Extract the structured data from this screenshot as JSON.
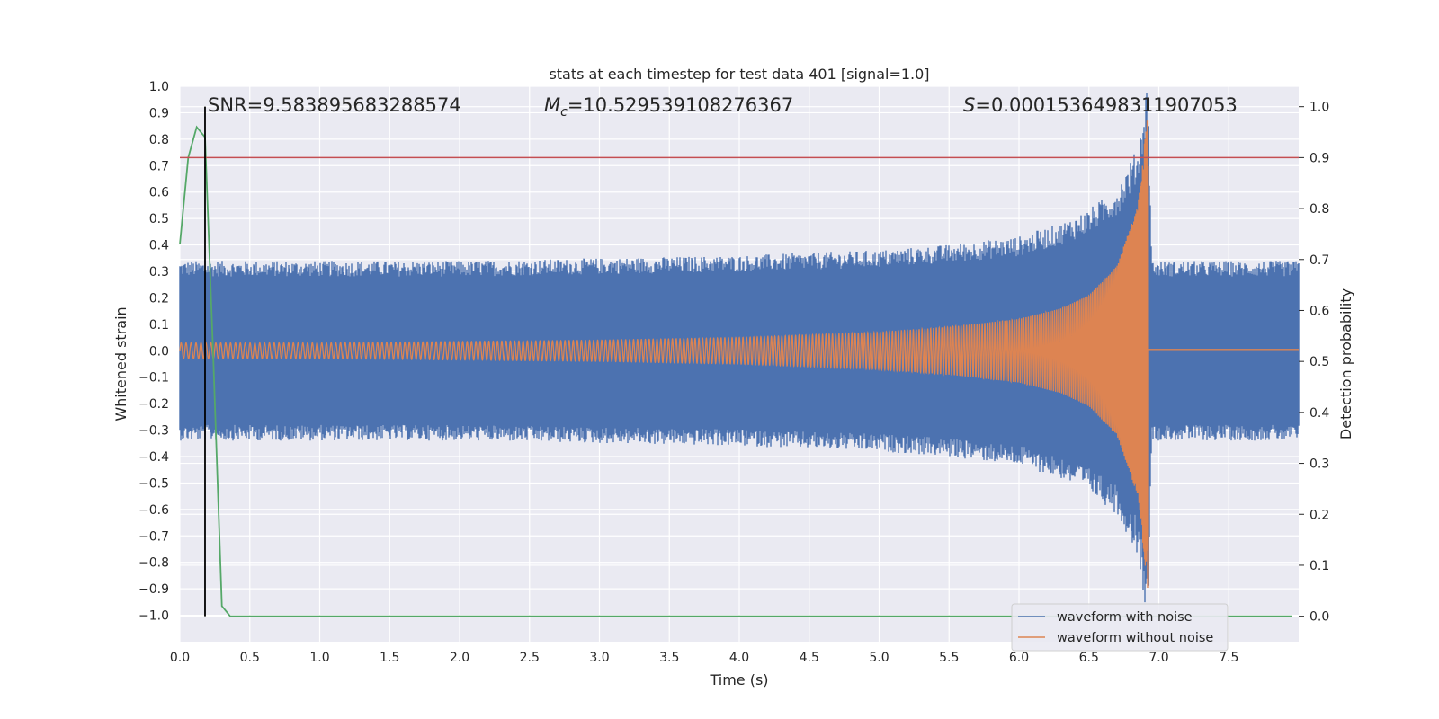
{
  "chart_data": {
    "type": "line",
    "title": "stats at each timestep for test data 401 [signal=1.0]",
    "xlabel": "Time (s)",
    "ylabel": "Whitened strain",
    "ylabel_right": "Detection probability",
    "xlim": [
      0.0,
      8.0
    ],
    "ylim": [
      -1.1,
      1.0
    ],
    "ylim_right": [
      -0.05,
      1.04
    ],
    "xticks": [
      "0.0",
      "0.5",
      "1.0",
      "1.5",
      "2.0",
      "2.5",
      "3.0",
      "3.5",
      "4.0",
      "4.5",
      "5.0",
      "5.5",
      "6.0",
      "6.5",
      "7.0",
      "7.5"
    ],
    "yticks": [
      "1.0",
      "0.9",
      "0.8",
      "0.7",
      "0.6",
      "0.5",
      "0.4",
      "0.3",
      "0.2",
      "0.1",
      "0.0",
      "−0.1",
      "−0.2",
      "−0.3",
      "−0.4",
      "−0.5",
      "−0.6",
      "−0.7",
      "−0.8",
      "−0.9",
      "−1.0"
    ],
    "yticks_right": [
      "1.0",
      "0.9",
      "0.8",
      "0.7",
      "0.6",
      "0.5",
      "0.4",
      "0.3",
      "0.2",
      "0.1",
      "0.0"
    ],
    "grid": true,
    "legend_position": "lower-right",
    "annotations": {
      "snr": "SNR=9.583895683288574",
      "mc_symbol": "M",
      "mc_subscript": "c",
      "mc_value": "=10.529539108276367",
      "s_symbol": "S",
      "s_value": "=0.0001536498311907053"
    },
    "series": [
      {
        "name": "waveform with noise",
        "color": "#4c72b0",
        "axis": "left",
        "envelope_x": [
          0.0,
          1.0,
          2.0,
          3.0,
          4.0,
          5.0,
          5.5,
          6.0,
          6.3,
          6.5,
          6.7,
          6.85,
          6.92,
          6.95,
          8.0
        ],
        "envelope_amplitude": [
          0.33,
          0.33,
          0.33,
          0.34,
          0.35,
          0.37,
          0.39,
          0.42,
          0.47,
          0.52,
          0.6,
          0.75,
          1.0,
          0.33,
          0.33
        ]
      },
      {
        "name": "waveform without noise",
        "color": "#dd8452",
        "axis": "left",
        "envelope_x": [
          0.0,
          1.0,
          2.0,
          3.0,
          4.0,
          5.0,
          5.5,
          6.0,
          6.3,
          6.5,
          6.7,
          6.85,
          6.92,
          6.95,
          8.0
        ],
        "envelope_amplitude": [
          0.03,
          0.03,
          0.035,
          0.04,
          0.05,
          0.07,
          0.09,
          0.12,
          0.16,
          0.21,
          0.32,
          0.55,
          0.9,
          0.0,
          0.0
        ],
        "post_merger_value": 0.005
      },
      {
        "name": "",
        "color": "#55a868",
        "axis": "right",
        "x": [
          0.0,
          0.06,
          0.12,
          0.18,
          0.24,
          0.3,
          0.36,
          0.42,
          7.95
        ],
        "y": [
          0.73,
          0.9,
          0.96,
          0.94,
          0.5,
          0.02,
          0.0,
          0.0,
          0.0
        ]
      }
    ],
    "hlines": [
      {
        "axis": "right",
        "y": 0.9,
        "color": "#c44e52"
      }
    ],
    "vlines": [
      {
        "x": 0.18,
        "color": "#000000",
        "ymin_right": 0.0,
        "ymax_right": 1.0
      }
    ]
  }
}
